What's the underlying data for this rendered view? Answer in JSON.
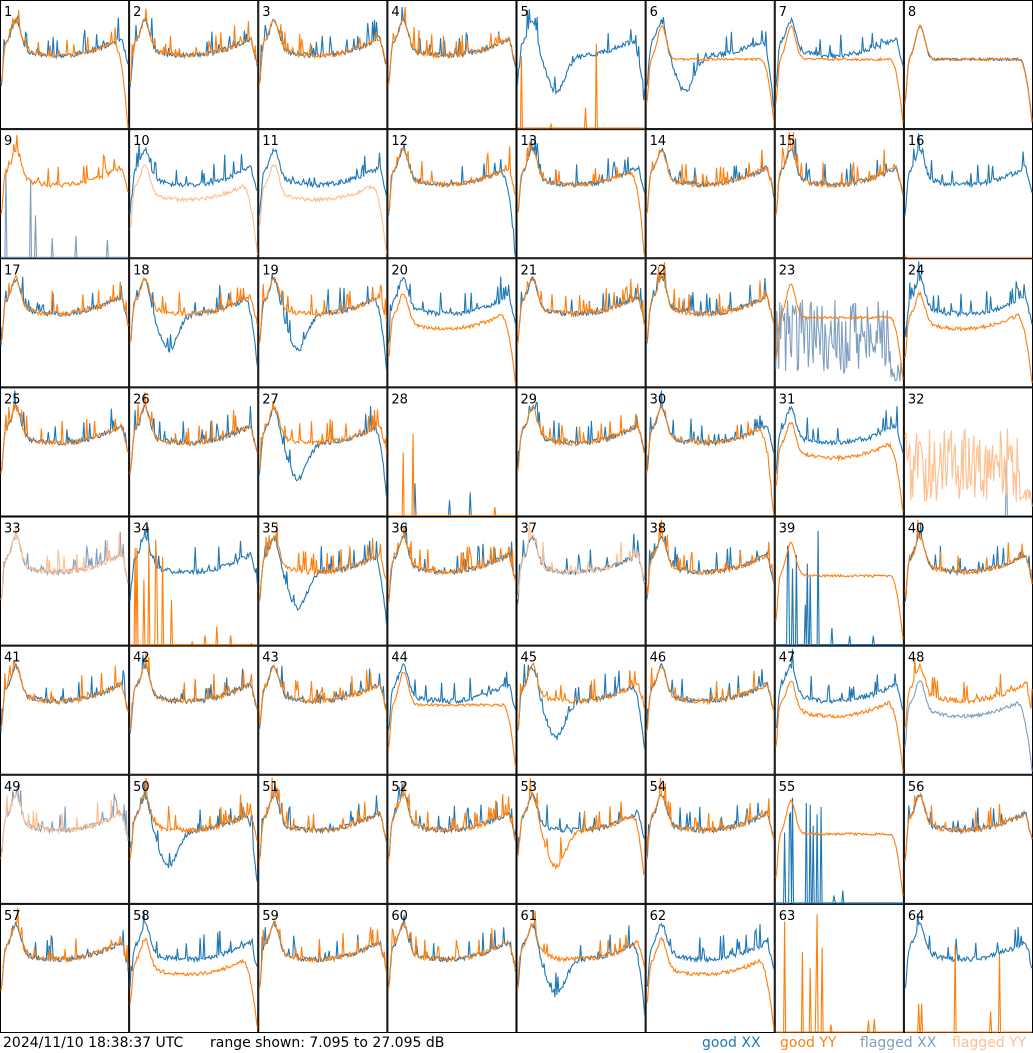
{
  "timestamp": "2024/11/10 18:38:37 UTC",
  "range_text": "range shown: 7.095 to 27.095 dB",
  "legend": [
    {
      "label": "good XX",
      "color": "#1f77b4"
    },
    {
      "label": "good YY",
      "color": "#ff7f0e"
    },
    {
      "label": "flagged XX",
      "color": "#7f9fbf"
    },
    {
      "label": "flagged YY",
      "color": "#ffbf8f"
    }
  ],
  "chart_data": {
    "type": "line",
    "title": "",
    "ylim": [
      7.095,
      27.095
    ],
    "y_unit": "dB",
    "grid": "8x8",
    "tiles": [
      {
        "n": "1",
        "x": "good",
        "y": "good",
        "xp": "std",
        "yp": "drop"
      },
      {
        "n": "2",
        "x": "good",
        "y": "good",
        "xp": "std",
        "yp": "std"
      },
      {
        "n": "3",
        "x": "good",
        "y": "good",
        "xp": "std",
        "yp": "std"
      },
      {
        "n": "4",
        "x": "good",
        "y": "good",
        "xp": "std",
        "yp": "std"
      },
      {
        "n": "5",
        "x": "good",
        "y": "good",
        "xp": "dip",
        "yp": "dead"
      },
      {
        "n": "6",
        "x": "good",
        "y": "good",
        "xp": "dip",
        "yp": "flat"
      },
      {
        "n": "7",
        "x": "good",
        "y": "good",
        "xp": "std",
        "yp": "flat"
      },
      {
        "n": "8",
        "x": "good",
        "y": "good",
        "xp": "flat",
        "yp": "flat"
      },
      {
        "n": "9",
        "x": "flagged",
        "y": "good",
        "xp": "spikes",
        "yp": "std"
      },
      {
        "n": "10",
        "x": "good",
        "y": "flagged",
        "xp": "std",
        "yp": "low"
      },
      {
        "n": "11",
        "x": "good",
        "y": "flagged",
        "xp": "std",
        "yp": "low"
      },
      {
        "n": "12",
        "x": "good",
        "y": "good",
        "xp": "drop",
        "yp": "std"
      },
      {
        "n": "13",
        "x": "good",
        "y": "good",
        "xp": "std",
        "yp": "drop"
      },
      {
        "n": "14",
        "x": "good",
        "y": "good",
        "xp": "std",
        "yp": "std"
      },
      {
        "n": "15",
        "x": "good",
        "y": "good",
        "xp": "std",
        "yp": "std"
      },
      {
        "n": "16",
        "x": "good",
        "y": "flagged",
        "xp": "std",
        "yp": "dead"
      },
      {
        "n": "17",
        "x": "good",
        "y": "good",
        "xp": "std",
        "yp": "std"
      },
      {
        "n": "18",
        "x": "good",
        "y": "good",
        "xp": "dip",
        "yp": "std"
      },
      {
        "n": "19",
        "x": "good",
        "y": "good",
        "xp": "dip",
        "yp": "std"
      },
      {
        "n": "20",
        "x": "good",
        "y": "good",
        "xp": "std",
        "yp": "low"
      },
      {
        "n": "21",
        "x": "good",
        "y": "good",
        "xp": "std",
        "yp": "std"
      },
      {
        "n": "22",
        "x": "good",
        "y": "good",
        "xp": "std",
        "yp": "std"
      },
      {
        "n": "23",
        "x": "flagged",
        "y": "good",
        "xp": "noise",
        "yp": "flat"
      },
      {
        "n": "24",
        "x": "good",
        "y": "good",
        "xp": "std",
        "yp": "low"
      },
      {
        "n": "25",
        "x": "good",
        "y": "good",
        "xp": "std",
        "yp": "std"
      },
      {
        "n": "26",
        "x": "good",
        "y": "good",
        "xp": "std",
        "yp": "std"
      },
      {
        "n": "27",
        "x": "good",
        "y": "good",
        "xp": "dip",
        "yp": "std"
      },
      {
        "n": "28",
        "x": "good",
        "y": "good",
        "xp": "dead",
        "yp": "spikes"
      },
      {
        "n": "29",
        "x": "good",
        "y": "good",
        "xp": "std",
        "yp": "std"
      },
      {
        "n": "30",
        "x": "good",
        "y": "good",
        "xp": "std",
        "yp": "drop"
      },
      {
        "n": "31",
        "x": "good",
        "y": "good",
        "xp": "std",
        "yp": "low"
      },
      {
        "n": "32",
        "x": "flagged",
        "y": "flagged",
        "xp": "dead",
        "yp": "noise"
      },
      {
        "n": "33",
        "x": "flagged",
        "y": "flagged",
        "xp": "std",
        "yp": "std"
      },
      {
        "n": "34",
        "x": "good",
        "y": "good",
        "xp": "std",
        "yp": "spikes"
      },
      {
        "n": "35",
        "x": "good",
        "y": "good",
        "xp": "dip",
        "yp": "std"
      },
      {
        "n": "36",
        "x": "good",
        "y": "good",
        "xp": "std",
        "yp": "std"
      },
      {
        "n": "37",
        "x": "good",
        "y": "flagged",
        "xp": "std",
        "yp": "std"
      },
      {
        "n": "38",
        "x": "good",
        "y": "good",
        "xp": "std",
        "yp": "std"
      },
      {
        "n": "39",
        "x": "good",
        "y": "good",
        "xp": "spikes",
        "yp": "flat"
      },
      {
        "n": "40",
        "x": "good",
        "y": "good",
        "xp": "std",
        "yp": "std"
      },
      {
        "n": "41",
        "x": "good",
        "y": "good",
        "xp": "std",
        "yp": "std"
      },
      {
        "n": "42",
        "x": "good",
        "y": "good",
        "xp": "std",
        "yp": "std"
      },
      {
        "n": "43",
        "x": "good",
        "y": "good",
        "xp": "std",
        "yp": "std"
      },
      {
        "n": "44",
        "x": "good",
        "y": "good",
        "xp": "std",
        "yp": "flat"
      },
      {
        "n": "45",
        "x": "good",
        "y": "good",
        "xp": "dip",
        "yp": "std"
      },
      {
        "n": "46",
        "x": "good",
        "y": "good",
        "xp": "std",
        "yp": "std"
      },
      {
        "n": "47",
        "x": "good",
        "y": "good",
        "xp": "std",
        "yp": "low"
      },
      {
        "n": "48",
        "x": "flagged",
        "y": "good",
        "xp": "low",
        "yp": "std"
      },
      {
        "n": "49",
        "x": "flagged",
        "y": "flagged",
        "xp": "std",
        "yp": "std"
      },
      {
        "n": "50",
        "x": "good",
        "y": "good",
        "xp": "dip",
        "yp": "std"
      },
      {
        "n": "51",
        "x": "good",
        "y": "good",
        "xp": "std",
        "yp": "std"
      },
      {
        "n": "52",
        "x": "good",
        "y": "good",
        "xp": "std",
        "yp": "std"
      },
      {
        "n": "53",
        "x": "good",
        "y": "good",
        "xp": "std",
        "yp": "dip"
      },
      {
        "n": "54",
        "x": "good",
        "y": "good",
        "xp": "std",
        "yp": "std"
      },
      {
        "n": "55",
        "x": "good",
        "y": "good",
        "xp": "spikes",
        "yp": "flat"
      },
      {
        "n": "56",
        "x": "good",
        "y": "good",
        "xp": "std",
        "yp": "std"
      },
      {
        "n": "57",
        "x": "good",
        "y": "good",
        "xp": "std",
        "yp": "std"
      },
      {
        "n": "58",
        "x": "good",
        "y": "good",
        "xp": "std",
        "yp": "low"
      },
      {
        "n": "59",
        "x": "good",
        "y": "good",
        "xp": "std",
        "yp": "std"
      },
      {
        "n": "60",
        "x": "good",
        "y": "good",
        "xp": "std",
        "yp": "std"
      },
      {
        "n": "61",
        "x": "good",
        "y": "good",
        "xp": "dip",
        "yp": "std"
      },
      {
        "n": "62",
        "x": "good",
        "y": "good",
        "xp": "std",
        "yp": "low"
      },
      {
        "n": "63",
        "x": "good",
        "y": "good",
        "xp": "dead",
        "yp": "spikes"
      },
      {
        "n": "64",
        "x": "good",
        "y": "good",
        "xp": "std",
        "yp": "dead"
      }
    ]
  }
}
